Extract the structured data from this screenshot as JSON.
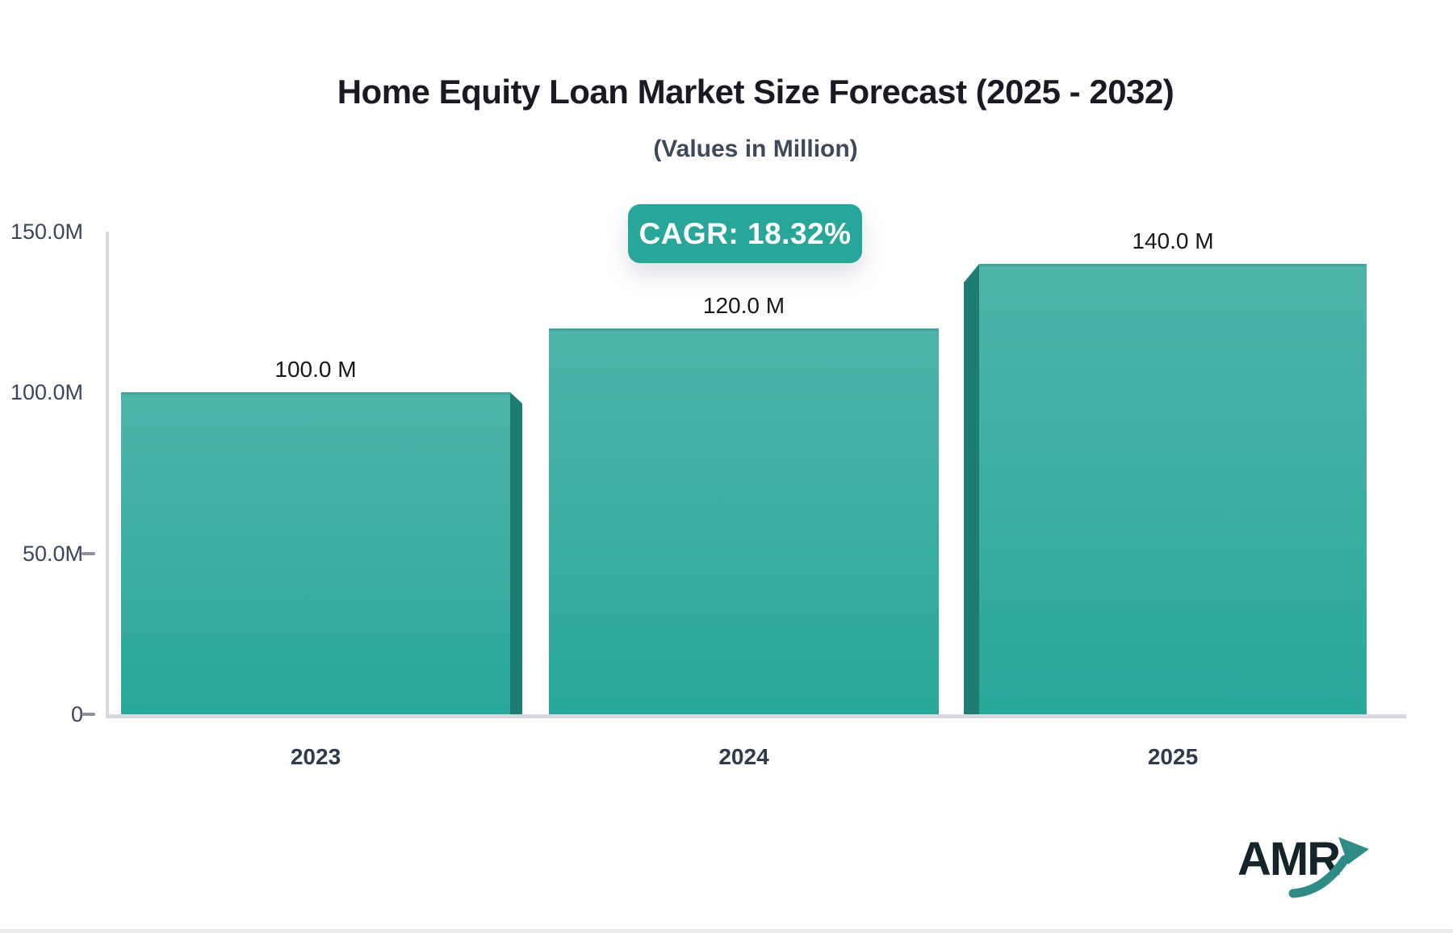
{
  "header": {
    "title": "Home Equity Loan Market Size Forecast (2025 - 2032)",
    "subtitle": "(Values in Million)"
  },
  "cagr_badge": {
    "label": "CAGR: 18.32%",
    "bg_color": "#29a69a",
    "text_color": "#ffffff"
  },
  "chart_data": {
    "type": "bar",
    "title": "Home Equity Loan Market Size Forecast (2025 - 2032)",
    "subtitle": "(Values in Million)",
    "unit": "Million",
    "cagr": "18.32%",
    "categories": [
      "2023",
      "2024",
      "2025"
    ],
    "values": [
      100.0,
      120.0,
      140.0
    ],
    "value_labels": [
      "100.0 M",
      "120.0 M",
      "140.0 M"
    ],
    "xlabel": "",
    "ylabel": "",
    "ylim": [
      0,
      150
    ],
    "yticks": [
      {
        "value": 0,
        "label": "0",
        "dash": true
      },
      {
        "value": 50,
        "label": "50.0M",
        "dash": true
      },
      {
        "value": 100,
        "label": "100.0M",
        "dash": false
      },
      {
        "value": 150,
        "label": "150.0M",
        "dash": false
      }
    ],
    "grid": false,
    "legend": "none",
    "bar_color_top": "#4eb4aa",
    "bar_color_bottom": "#29a89a",
    "bar_side_color": "#1e7d73"
  },
  "logo": {
    "text": "AMR",
    "text_color": "#15232a",
    "arrow_color": "#2e8b86"
  }
}
